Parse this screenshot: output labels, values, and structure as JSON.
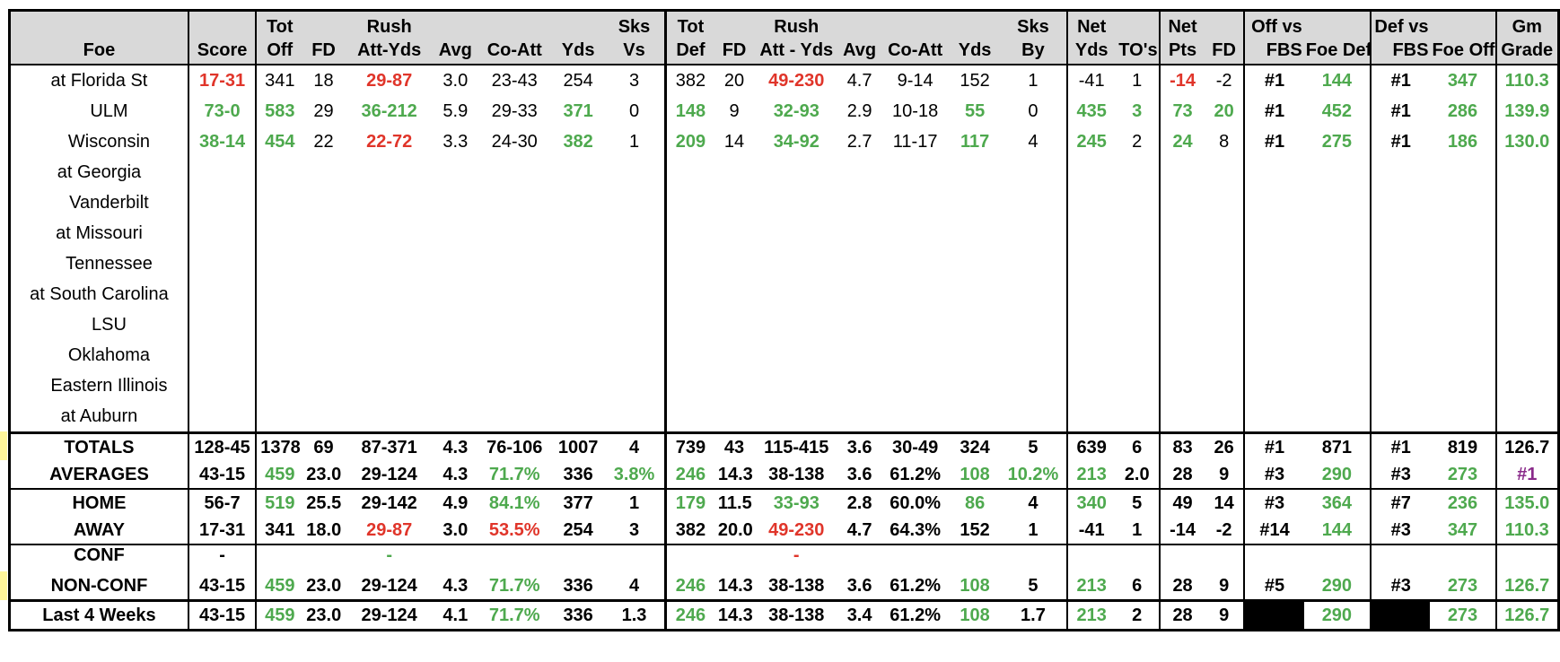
{
  "header": {
    "top": [
      "",
      "",
      "Tot",
      "",
      "Rush",
      "",
      "",
      "",
      "Sks",
      "Tot",
      "",
      "Rush",
      "",
      "",
      "",
      "Sks",
      "Net",
      "",
      "Net",
      "",
      "Off vs",
      "",
      "Def vs",
      "",
      "Gm"
    ],
    "bottom": [
      "Foe",
      "Score",
      "Off",
      "FD",
      "Att-Yds",
      "Avg",
      "Co-Att",
      "Yds",
      "Vs",
      "Def",
      "FD",
      "Att - Yds",
      "Avg",
      "Co-Att",
      "Yds",
      "By",
      "Yds",
      "TO's",
      "Pts",
      "FD",
      "FBS",
      "Foe Def",
      "FBS",
      "Foe Off",
      "Grade"
    ]
  },
  "games": [
    {
      "foe": "at Florida St",
      "indent": false,
      "cells": [
        [
          "17-31",
          "r"
        ],
        [
          "341",
          ""
        ],
        [
          "18",
          ""
        ],
        [
          "29-87",
          "r"
        ],
        [
          "3.0",
          ""
        ],
        [
          "23-43",
          ""
        ],
        [
          "254",
          ""
        ],
        [
          "3",
          ""
        ],
        [
          "382",
          ""
        ],
        [
          "20",
          ""
        ],
        [
          "49-230",
          "r"
        ],
        [
          "4.7",
          ""
        ],
        [
          "9-14",
          ""
        ],
        [
          "152",
          ""
        ],
        [
          "1",
          ""
        ],
        [
          "-41",
          ""
        ],
        [
          "1",
          ""
        ],
        [
          "-14",
          "r"
        ],
        [
          "-2",
          ""
        ],
        [
          "#1",
          "b"
        ],
        [
          "144",
          "g"
        ],
        [
          "#1",
          "b"
        ],
        [
          "347",
          "g"
        ],
        [
          "110.3",
          "g"
        ]
      ]
    },
    {
      "foe": "ULM",
      "indent": true,
      "cells": [
        [
          "73-0",
          "g"
        ],
        [
          "583",
          "g"
        ],
        [
          "29",
          ""
        ],
        [
          "36-212",
          "g"
        ],
        [
          "5.9",
          ""
        ],
        [
          "29-33",
          ""
        ],
        [
          "371",
          "g"
        ],
        [
          "0",
          ""
        ],
        [
          "148",
          "g"
        ],
        [
          "9",
          ""
        ],
        [
          "32-93",
          "g"
        ],
        [
          "2.9",
          ""
        ],
        [
          "10-18",
          ""
        ],
        [
          "55",
          "g"
        ],
        [
          "0",
          ""
        ],
        [
          "435",
          "g"
        ],
        [
          "3",
          "g"
        ],
        [
          "73",
          "g"
        ],
        [
          "20",
          "g"
        ],
        [
          "#1",
          "b"
        ],
        [
          "452",
          "g"
        ],
        [
          "#1",
          "b"
        ],
        [
          "286",
          "g"
        ],
        [
          "139.9",
          "g"
        ]
      ]
    },
    {
      "foe": "Wisconsin",
      "indent": true,
      "cells": [
        [
          "38-14",
          "g"
        ],
        [
          "454",
          "g"
        ],
        [
          "22",
          ""
        ],
        [
          "22-72",
          "r"
        ],
        [
          "3.3",
          ""
        ],
        [
          "24-30",
          ""
        ],
        [
          "382",
          "g"
        ],
        [
          "1",
          ""
        ],
        [
          "209",
          "g"
        ],
        [
          "14",
          ""
        ],
        [
          "34-92",
          "g"
        ],
        [
          "2.7",
          ""
        ],
        [
          "11-17",
          ""
        ],
        [
          "117",
          "g"
        ],
        [
          "4",
          ""
        ],
        [
          "245",
          "g"
        ],
        [
          "2",
          ""
        ],
        [
          "24",
          "g"
        ],
        [
          "8",
          ""
        ],
        [
          "#1",
          "b"
        ],
        [
          "275",
          "g"
        ],
        [
          "#1",
          "b"
        ],
        [
          "186",
          "g"
        ],
        [
          "130.0",
          "g"
        ]
      ]
    },
    {
      "foe": "at Georgia",
      "indent": false,
      "cells": []
    },
    {
      "foe": "Vanderbilt",
      "indent": true,
      "cells": []
    },
    {
      "foe": "at Missouri",
      "indent": false,
      "cells": []
    },
    {
      "foe": "Tennessee",
      "indent": true,
      "cells": []
    },
    {
      "foe": "at South Carolina",
      "indent": false,
      "cells": []
    },
    {
      "foe": "LSU",
      "indent": true,
      "cells": []
    },
    {
      "foe": "Oklahoma",
      "indent": true,
      "cells": []
    },
    {
      "foe": "Eastern Illinois",
      "indent": true,
      "cells": []
    },
    {
      "foe": "at Auburn",
      "indent": false,
      "cells": []
    }
  ],
  "summary": [
    {
      "label": "TOTALS",
      "highlight": true,
      "cells": [
        [
          "128-45",
          ""
        ],
        [
          "1378",
          ""
        ],
        [
          "69",
          ""
        ],
        [
          "87-371",
          ""
        ],
        [
          "4.3",
          ""
        ],
        [
          "76-106",
          ""
        ],
        [
          "1007",
          ""
        ],
        [
          "4",
          ""
        ],
        [
          "739",
          ""
        ],
        [
          "43",
          ""
        ],
        [
          "115-415",
          ""
        ],
        [
          "3.6",
          ""
        ],
        [
          "30-49",
          ""
        ],
        [
          "324",
          ""
        ],
        [
          "5",
          ""
        ],
        [
          "639",
          ""
        ],
        [
          "6",
          ""
        ],
        [
          "83",
          ""
        ],
        [
          "26",
          ""
        ],
        [
          "#1",
          ""
        ],
        [
          "871",
          ""
        ],
        [
          "#1",
          ""
        ],
        [
          "819",
          ""
        ],
        [
          "126.7",
          ""
        ]
      ]
    },
    {
      "label": "AVERAGES",
      "highlight": false,
      "cells": [
        [
          "43-15",
          ""
        ],
        [
          "459",
          "g"
        ],
        [
          "23.0",
          ""
        ],
        [
          "29-124",
          ""
        ],
        [
          "4.3",
          ""
        ],
        [
          "71.7%",
          "g"
        ],
        [
          "336",
          ""
        ],
        [
          "3.8%",
          "g"
        ],
        [
          "246",
          "g"
        ],
        [
          "14.3",
          ""
        ],
        [
          "38-138",
          ""
        ],
        [
          "3.6",
          ""
        ],
        [
          "61.2%",
          ""
        ],
        [
          "108",
          "g"
        ],
        [
          "10.2%",
          "g"
        ],
        [
          "213",
          "g"
        ],
        [
          "2.0",
          ""
        ],
        [
          "28",
          ""
        ],
        [
          "9",
          ""
        ],
        [
          "#3",
          ""
        ],
        [
          "290",
          "g"
        ],
        [
          "#3",
          ""
        ],
        [
          "273",
          "g"
        ],
        [
          "#1",
          "p"
        ]
      ]
    },
    {
      "label": "HOME",
      "highlight": false,
      "cells": [
        [
          "56-7",
          ""
        ],
        [
          "519",
          "g"
        ],
        [
          "25.5",
          ""
        ],
        [
          "29-142",
          ""
        ],
        [
          "4.9",
          ""
        ],
        [
          "84.1%",
          "g"
        ],
        [
          "377",
          ""
        ],
        [
          "1",
          ""
        ],
        [
          "179",
          "g"
        ],
        [
          "11.5",
          ""
        ],
        [
          "33-93",
          "g"
        ],
        [
          "2.8",
          ""
        ],
        [
          "60.0%",
          ""
        ],
        [
          "86",
          "g"
        ],
        [
          "4",
          ""
        ],
        [
          "340",
          "g"
        ],
        [
          "5",
          ""
        ],
        [
          "49",
          ""
        ],
        [
          "14",
          ""
        ],
        [
          "#3",
          ""
        ],
        [
          "364",
          "g"
        ],
        [
          "#7",
          ""
        ],
        [
          "236",
          "g"
        ],
        [
          "135.0",
          "g"
        ]
      ]
    },
    {
      "label": "AWAY",
      "highlight": false,
      "cells": [
        [
          "17-31",
          ""
        ],
        [
          "341",
          ""
        ],
        [
          "18.0",
          ""
        ],
        [
          "29-87",
          "r"
        ],
        [
          "3.0",
          ""
        ],
        [
          "53.5%",
          "r"
        ],
        [
          "254",
          ""
        ],
        [
          "3",
          ""
        ],
        [
          "382",
          ""
        ],
        [
          "20.0",
          ""
        ],
        [
          "49-230",
          "r"
        ],
        [
          "4.7",
          ""
        ],
        [
          "64.3%",
          ""
        ],
        [
          "152",
          ""
        ],
        [
          "1",
          ""
        ],
        [
          "-41",
          ""
        ],
        [
          "1",
          ""
        ],
        [
          "-14",
          ""
        ],
        [
          "-2",
          ""
        ],
        [
          "#14",
          ""
        ],
        [
          "144",
          "g"
        ],
        [
          "#3",
          ""
        ],
        [
          "347",
          "g"
        ],
        [
          "110.3",
          "g"
        ]
      ]
    },
    {
      "label": "CONF",
      "highlight": false,
      "cells": [
        [
          "-",
          ""
        ],
        [
          "",
          ""
        ],
        [
          "",
          ""
        ],
        [
          "-",
          "g"
        ],
        [
          "",
          ""
        ],
        [
          "",
          ""
        ],
        [
          "",
          ""
        ],
        [
          "",
          ""
        ],
        [
          "",
          ""
        ],
        [
          "",
          ""
        ],
        [
          "-",
          "r"
        ],
        [
          "",
          ""
        ],
        [
          "",
          ""
        ],
        [
          "",
          ""
        ],
        [
          "",
          ""
        ],
        [
          "",
          ""
        ],
        [
          "",
          ""
        ],
        [
          "",
          ""
        ],
        [
          "",
          ""
        ],
        [
          "",
          ""
        ],
        [
          "",
          ""
        ],
        [
          "",
          ""
        ],
        [
          "",
          ""
        ],
        [
          "",
          ""
        ]
      ]
    },
    {
      "label": "NON-CONF",
      "highlight": true,
      "cells": [
        [
          "43-15",
          ""
        ],
        [
          "459",
          "g"
        ],
        [
          "23.0",
          ""
        ],
        [
          "29-124",
          ""
        ],
        [
          "4.3",
          ""
        ],
        [
          "71.7%",
          "g"
        ],
        [
          "336",
          ""
        ],
        [
          "4",
          ""
        ],
        [
          "246",
          "g"
        ],
        [
          "14.3",
          ""
        ],
        [
          "38-138",
          ""
        ],
        [
          "3.6",
          ""
        ],
        [
          "61.2%",
          ""
        ],
        [
          "108",
          "g"
        ],
        [
          "5",
          ""
        ],
        [
          "213",
          "g"
        ],
        [
          "6",
          ""
        ],
        [
          "28",
          ""
        ],
        [
          "9",
          ""
        ],
        [
          "#5",
          ""
        ],
        [
          "290",
          "g"
        ],
        [
          "#3",
          ""
        ],
        [
          "273",
          "g"
        ],
        [
          "126.7",
          "g"
        ]
      ]
    },
    {
      "label": "Last 4 Weeks",
      "highlight": false,
      "cells": [
        [
          "43-15",
          ""
        ],
        [
          "459",
          "g"
        ],
        [
          "23.0",
          ""
        ],
        [
          "29-124",
          ""
        ],
        [
          "4.1",
          ""
        ],
        [
          "71.7%",
          "g"
        ],
        [
          "336",
          ""
        ],
        [
          "1.3",
          ""
        ],
        [
          "246",
          "g"
        ],
        [
          "14.3",
          ""
        ],
        [
          "38-138",
          ""
        ],
        [
          "3.4",
          ""
        ],
        [
          "61.2%",
          ""
        ],
        [
          "108",
          "g"
        ],
        [
          "1.7",
          ""
        ],
        [
          "213",
          "g"
        ],
        [
          "2",
          ""
        ],
        [
          "28",
          ""
        ],
        [
          "9",
          ""
        ],
        [
          "",
          "bk"
        ],
        [
          "290",
          "g"
        ],
        [
          "",
          "bk"
        ],
        [
          "273",
          "g"
        ],
        [
          "126.7",
          "g"
        ]
      ]
    }
  ]
}
